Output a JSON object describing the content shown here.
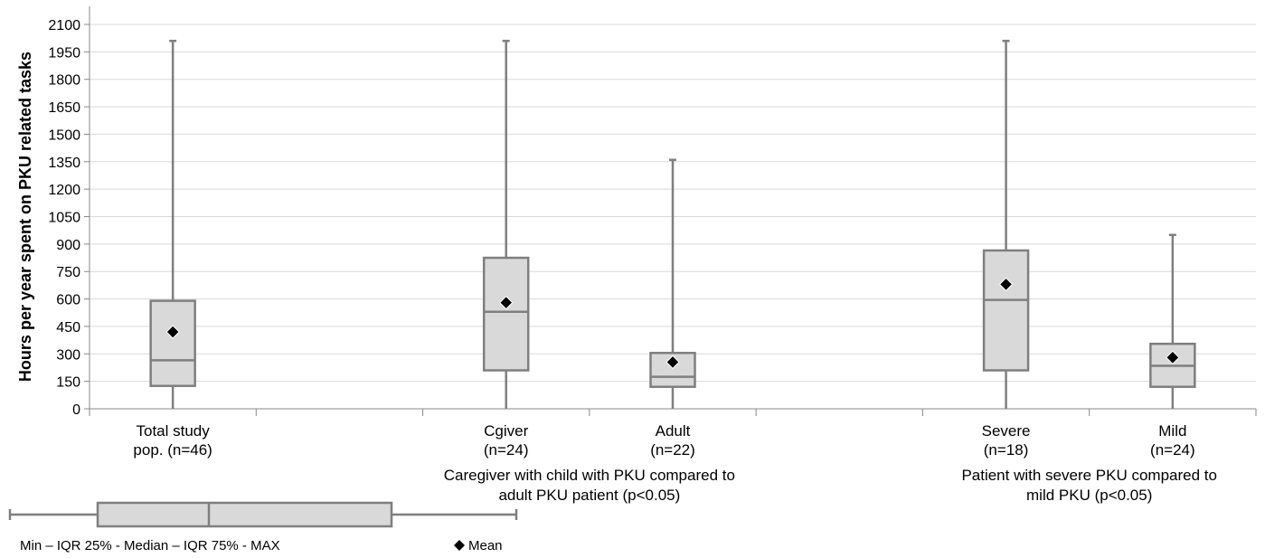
{
  "chart_data": {
    "type": "box",
    "ylabel": "Hours per year spent on PKU related tasks",
    "ylim": [
      0,
      2100
    ],
    "yticks": [
      0,
      150,
      300,
      450,
      600,
      750,
      900,
      1050,
      1200,
      1350,
      1500,
      1650,
      1800,
      1950,
      2100
    ],
    "grid": true,
    "categories": [
      {
        "label_lines": [
          "Total study",
          "pop. (n=46)"
        ],
        "min": 0,
        "q1": 125,
        "median": 265,
        "q3": 590,
        "max": 2010,
        "mean": 420
      },
      {
        "label_lines": [],
        "empty": true
      },
      {
        "label_lines": [
          "Cgiver",
          "(n=24)"
        ],
        "min": 0,
        "q1": 210,
        "median": 530,
        "q3": 825,
        "max": 2010,
        "mean": 580
      },
      {
        "label_lines": [
          "Adult",
          "(n=22)"
        ],
        "min": 0,
        "q1": 120,
        "median": 175,
        "q3": 305,
        "max": 1360,
        "mean": 255
      },
      {
        "label_lines": [],
        "empty": true
      },
      {
        "label_lines": [
          "Severe",
          "(n=18)"
        ],
        "min": 0,
        "q1": 210,
        "median": 595,
        "q3": 865,
        "max": 2010,
        "mean": 680
      },
      {
        "label_lines": [
          "Mild",
          "(n=24)"
        ],
        "min": 0,
        "q1": 120,
        "median": 235,
        "q3": 355,
        "max": 950,
        "mean": 280
      }
    ],
    "group_annotations": [
      {
        "lines": [
          "Caregiver with child with PKU compared to",
          "adult PKU patient  (p<0.05)"
        ],
        "between": [
          2,
          3
        ]
      },
      {
        "lines": [
          "Patient with severe PKU compared to",
          "mild  PKU (p<0.05)"
        ],
        "between": [
          5,
          6
        ]
      }
    ],
    "legend": {
      "box_label": "Min – IQR 25% - Median – IQR 75% - MAX",
      "mean_label": "Mean"
    }
  }
}
